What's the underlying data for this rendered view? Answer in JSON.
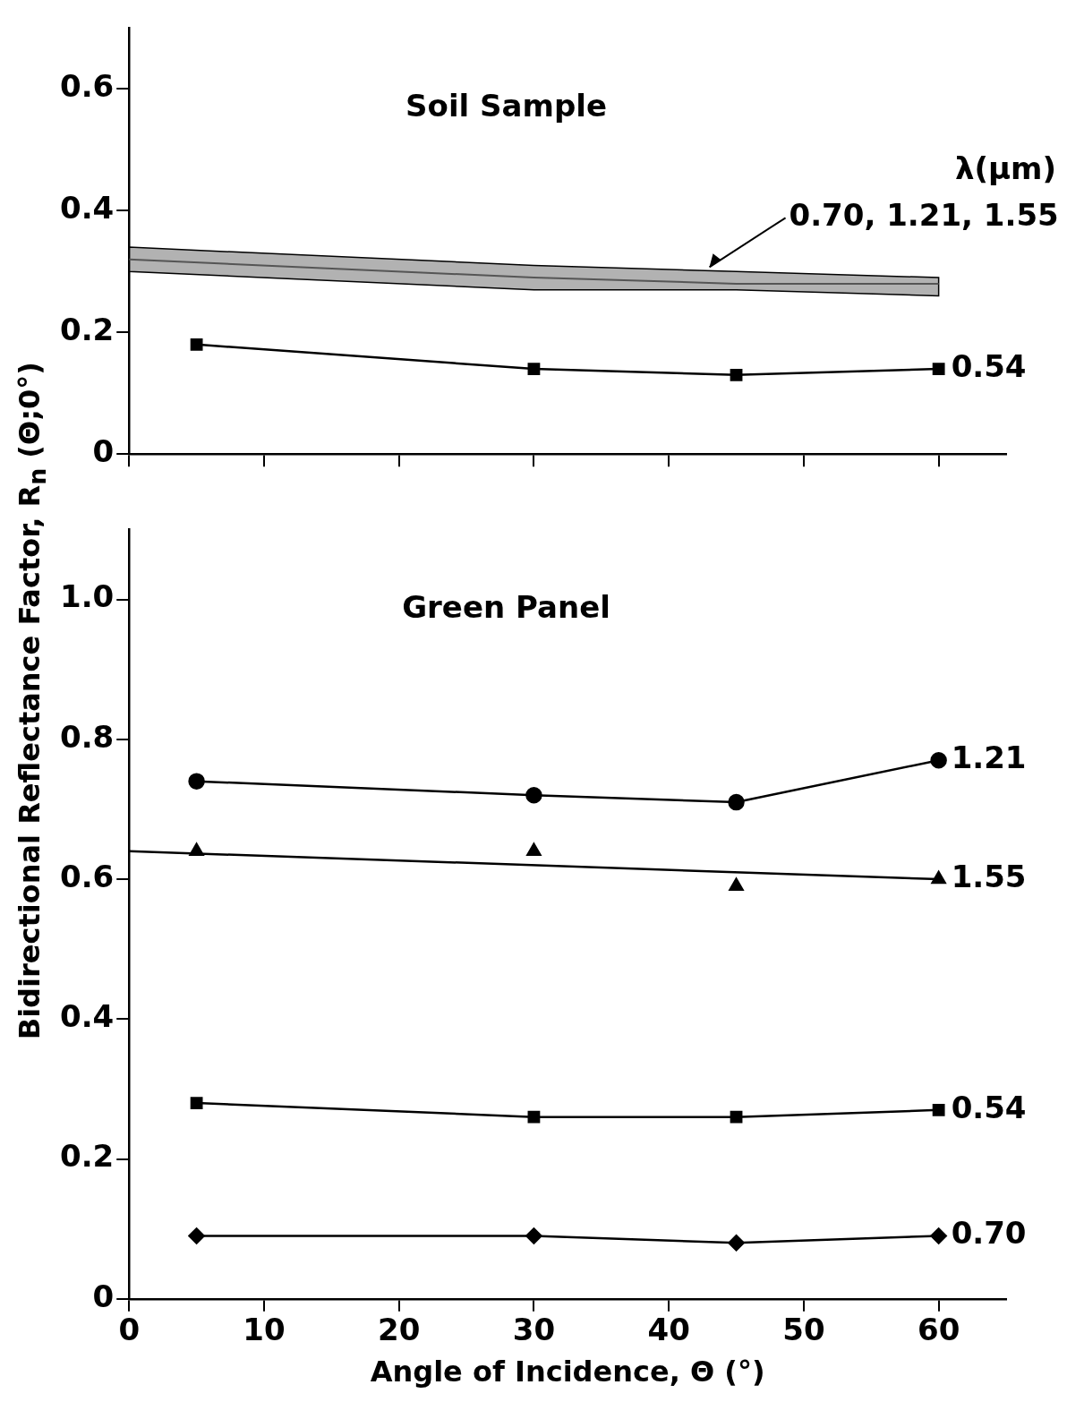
{
  "chart_data": [
    {
      "type": "line",
      "title": "Soil Sample",
      "legend_title": "λ(μm)",
      "ylabel": "Bidirectional Reflectance Factor, R$_{n}$ (Θ;0°)",
      "xlim": [
        0,
        65
      ],
      "xticks": [
        0,
        10,
        20,
        30,
        40,
        50,
        60
      ],
      "ylim": [
        0,
        0.7
      ],
      "yticks": [
        0,
        0.2,
        0.4,
        0.6
      ],
      "tick_labels": "y",
      "grid": false,
      "series": [
        {
          "name": "0.70, 1.21, 1.55",
          "type": "line",
          "color": "#555555",
          "x": [
            0,
            30,
            45,
            60
          ],
          "values": [
            0.32,
            0.29,
            0.28,
            0.28
          ],
          "lower": [
            0.3,
            0.27,
            0.27,
            0.26
          ],
          "upper": [
            0.34,
            0.31,
            0.3,
            0.29
          ],
          "marker": "none"
        },
        {
          "name": "0.54",
          "type": "line",
          "color": "#000000",
          "x": [
            5,
            30,
            45,
            60
          ],
          "values": [
            0.18,
            0.14,
            0.13,
            0.14
          ],
          "marker": "square"
        }
      ]
    },
    {
      "type": "line",
      "title": "Green Panel",
      "xlabel": "Angle of Incidence, Θ (°)",
      "xlim": [
        0,
        65
      ],
      "xticks": [
        0,
        10,
        20,
        30,
        40,
        50,
        60
      ],
      "ylim": [
        0,
        1.1
      ],
      "yticks": [
        0,
        0.2,
        0.4,
        0.6,
        0.8,
        {
          "value": 1,
          "label": "1.0"
        }
      ],
      "grid": false,
      "series": [
        {
          "name": "1.21",
          "type": "line",
          "color": "#000000",
          "x": [
            5,
            30,
            45,
            60
          ],
          "values": [
            0.74,
            0.72,
            0.71,
            0.77
          ],
          "marker": "circle"
        },
        {
          "name": "1.55",
          "type": "scatter",
          "color": "#000000",
          "x": [
            5,
            30,
            45,
            60
          ],
          "values": [
            0.64,
            0.64,
            0.59,
            0.6
          ],
          "marker": "triangle"
        },
        {
          "type": "line",
          "color": "#000000",
          "x": [
            0,
            60
          ],
          "values": [
            0.64,
            0.6
          ],
          "marker": "none"
        },
        {
          "name": "0.54",
          "type": "line",
          "color": "#000000",
          "x": [
            5,
            30,
            45,
            60
          ],
          "values": [
            0.28,
            0.26,
            0.26,
            0.27
          ],
          "marker": "square"
        },
        {
          "name": "0.70",
          "type": "line",
          "color": "#000000",
          "x": [
            5,
            30,
            45,
            60
          ],
          "values": [
            0.09,
            0.09,
            0.08,
            0.09
          ],
          "marker": "diamond"
        }
      ]
    }
  ]
}
